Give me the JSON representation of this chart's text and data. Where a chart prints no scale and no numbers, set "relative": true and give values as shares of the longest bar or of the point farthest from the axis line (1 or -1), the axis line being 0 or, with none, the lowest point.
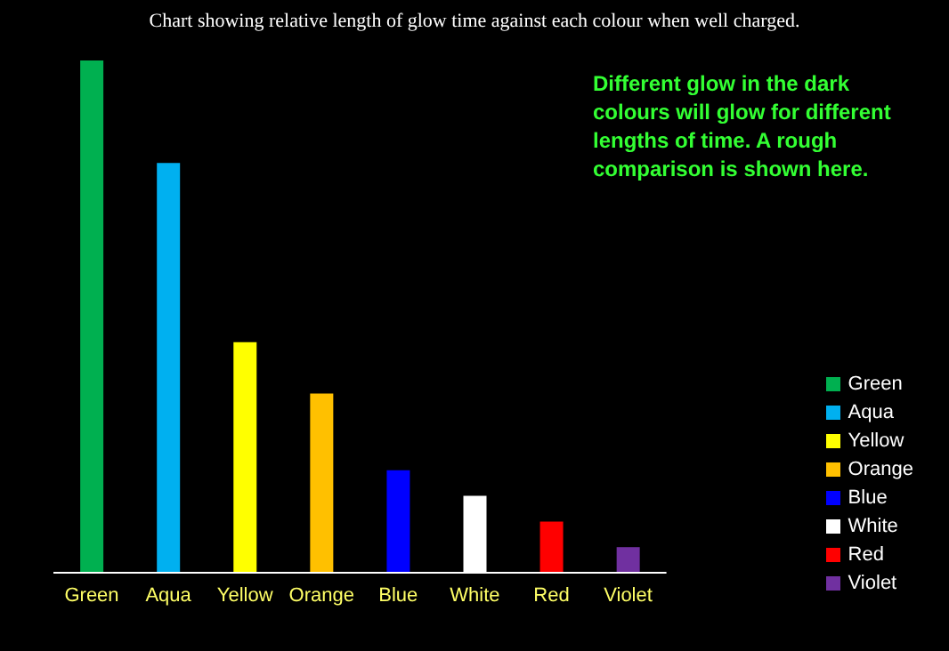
{
  "chart_data": {
    "type": "bar",
    "title": "Chart showing relative length of glow time against each colour when well charged.",
    "categories": [
      "Green",
      "Aqua",
      "Yellow",
      "Orange",
      "Blue",
      "White",
      "Red",
      "Violet"
    ],
    "stacked": true,
    "series": [
      {
        "name": "Green",
        "color": "#00b050",
        "values": [
          1,
          null,
          null,
          null,
          null,
          null,
          null,
          null
        ]
      },
      {
        "name": "Aqua",
        "color": "#00b0f0",
        "values": [
          null,
          0.8,
          null,
          null,
          null,
          null,
          null,
          null
        ]
      },
      {
        "name": "Yellow",
        "color": "#ffff00",
        "values": [
          null,
          null,
          0.45,
          null,
          null,
          null,
          null,
          null
        ]
      },
      {
        "name": "Orange",
        "color": "#ffc000",
        "values": [
          null,
          null,
          null,
          0.35,
          null,
          null,
          null,
          null
        ]
      },
      {
        "name": "Blue",
        "color": "#0000ff",
        "values": [
          null,
          null,
          null,
          null,
          0.2,
          null,
          null,
          null
        ]
      },
      {
        "name": "White",
        "color": "#ffffff",
        "values": [
          null,
          null,
          null,
          null,
          null,
          0.15,
          null,
          null
        ]
      },
      {
        "name": "Red",
        "color": "#ff0000",
        "values": [
          null,
          null,
          null,
          null,
          null,
          null,
          0.1,
          null
        ]
      },
      {
        "name": "Violet",
        "color": "#7030a0",
        "values": [
          null,
          null,
          null,
          null,
          null,
          null,
          null,
          0.05
        ]
      }
    ],
    "relative": true,
    "legend": "right",
    "annotations": [
      "Different glow in the dark colours will glow for different lengths of time. A rough comparison is shown here."
    ]
  }
}
